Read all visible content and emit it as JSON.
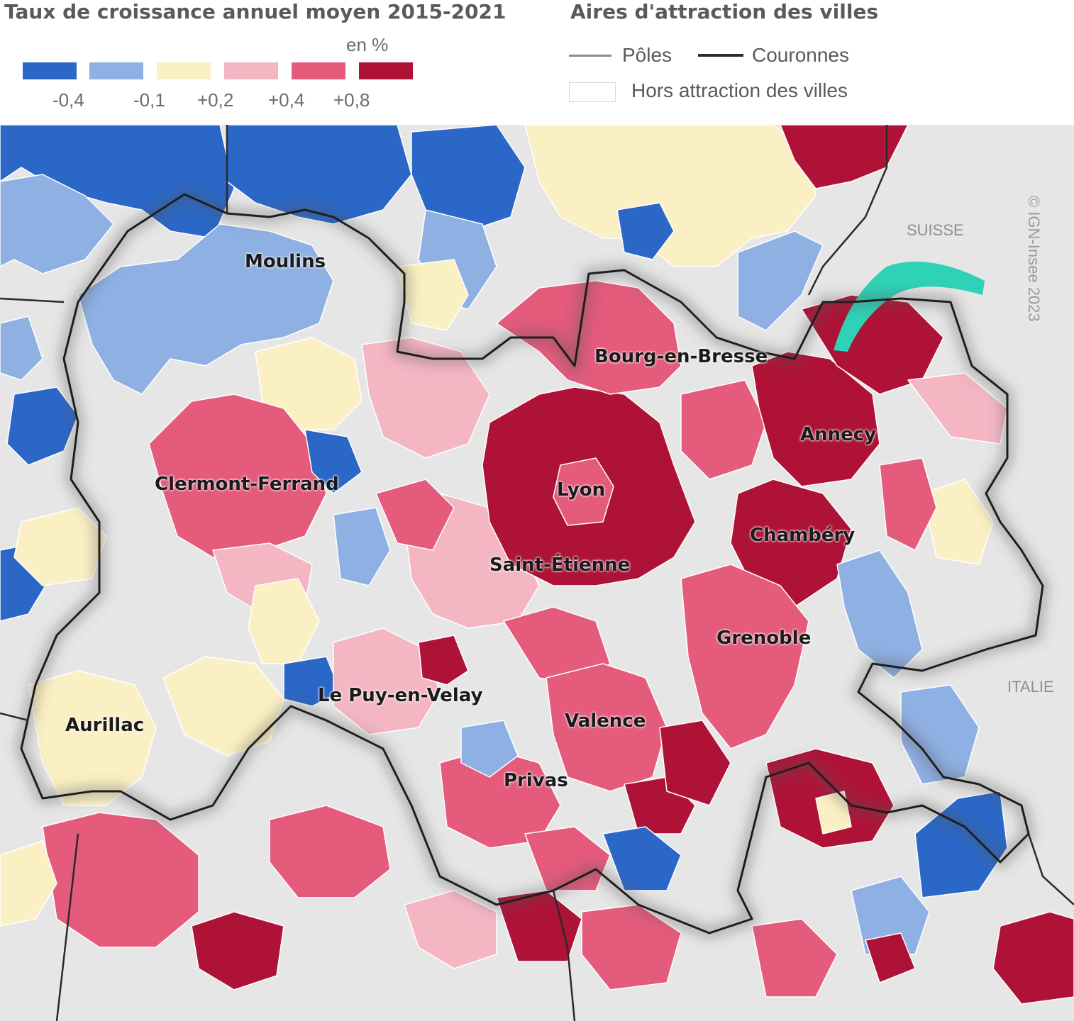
{
  "legend": {
    "growth_title": "Taux de croissance annuel moyen 2015-2021",
    "unit": "en %",
    "classes": [
      {
        "color": "#2b67c7"
      },
      {
        "color": "#8fb0e3"
      },
      {
        "color": "#fbf0c4"
      },
      {
        "color": "#f5b6c4"
      },
      {
        "color": "#e45b7c"
      },
      {
        "color": "#ae1337"
      }
    ],
    "ticks": [
      "-0,4",
      "-0,1",
      "+0,2",
      "+0,4",
      "+0,8"
    ],
    "areas_title": "Aires d'attraction des villes",
    "poles_label": "Pôles",
    "couronnes_label": "Couronnes",
    "hors_label": "Hors attraction des villes"
  },
  "map": {
    "background_color": "#e6e6e6",
    "lake_color": "#2ed3b7",
    "cities": [
      "Moulins",
      "Bourg-en-Bresse",
      "Annecy",
      "Clermont-Ferrand",
      "Lyon",
      "Chambéry",
      "Saint-Étienne",
      "Grenoble",
      "Le Puy-en-Velay",
      "Aurillac",
      "Valence",
      "Privas"
    ],
    "countries": [
      "SUISSE",
      "ITALIE"
    ],
    "copyright": "© IGN-Insee 2023"
  }
}
